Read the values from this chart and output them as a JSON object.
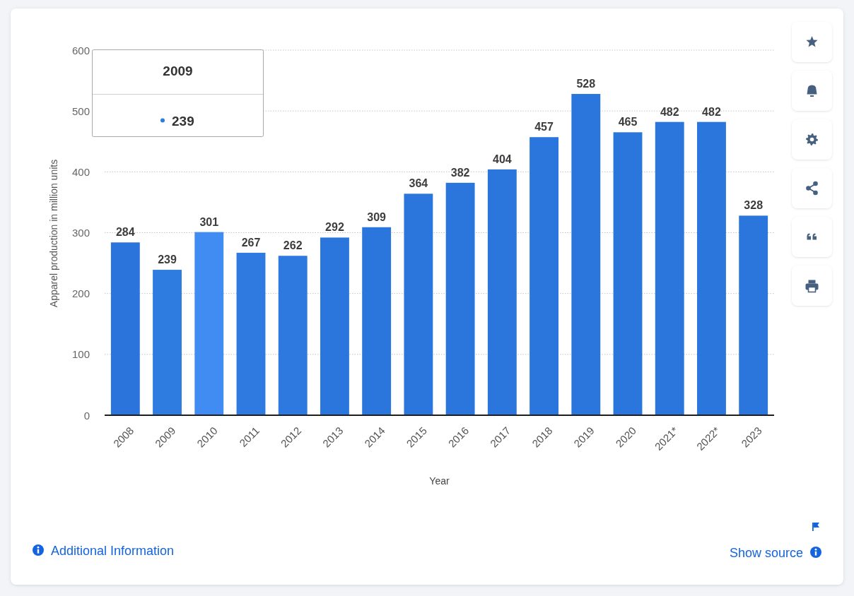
{
  "chart_data": {
    "type": "bar",
    "categories": [
      "2008",
      "2009",
      "2010",
      "2011",
      "2012",
      "2013",
      "2014",
      "2015",
      "2016",
      "2017",
      "2018",
      "2019",
      "2020",
      "2021*",
      "2022*",
      "2023"
    ],
    "values": [
      284,
      239,
      301,
      267,
      262,
      292,
      309,
      364,
      382,
      404,
      457,
      528,
      465,
      482,
      482,
      328
    ],
    "colors": [
      "#2a74db",
      "#2f7ce1",
      "#418cf2",
      "#2e7ae0",
      "#2e79df",
      "#2a76dc",
      "#2a76dc",
      "#2a76dc",
      "#2a76dc",
      "#2a76dc",
      "#2a76dc",
      "#2a76dc",
      "#2a76dc",
      "#2a76dc",
      "#2a76dc",
      "#2a76dc"
    ],
    "xlabel": "Year",
    "ylabel": "Apparel production in million units",
    "ylim": [
      0,
      600
    ],
    "yticks": [
      0,
      100,
      200,
      300,
      400,
      500,
      600
    ],
    "grid": "y",
    "data_labels": true,
    "annotations": [
      "2009",
      "239",
      "Additional Information",
      "Show source"
    ]
  }
}
